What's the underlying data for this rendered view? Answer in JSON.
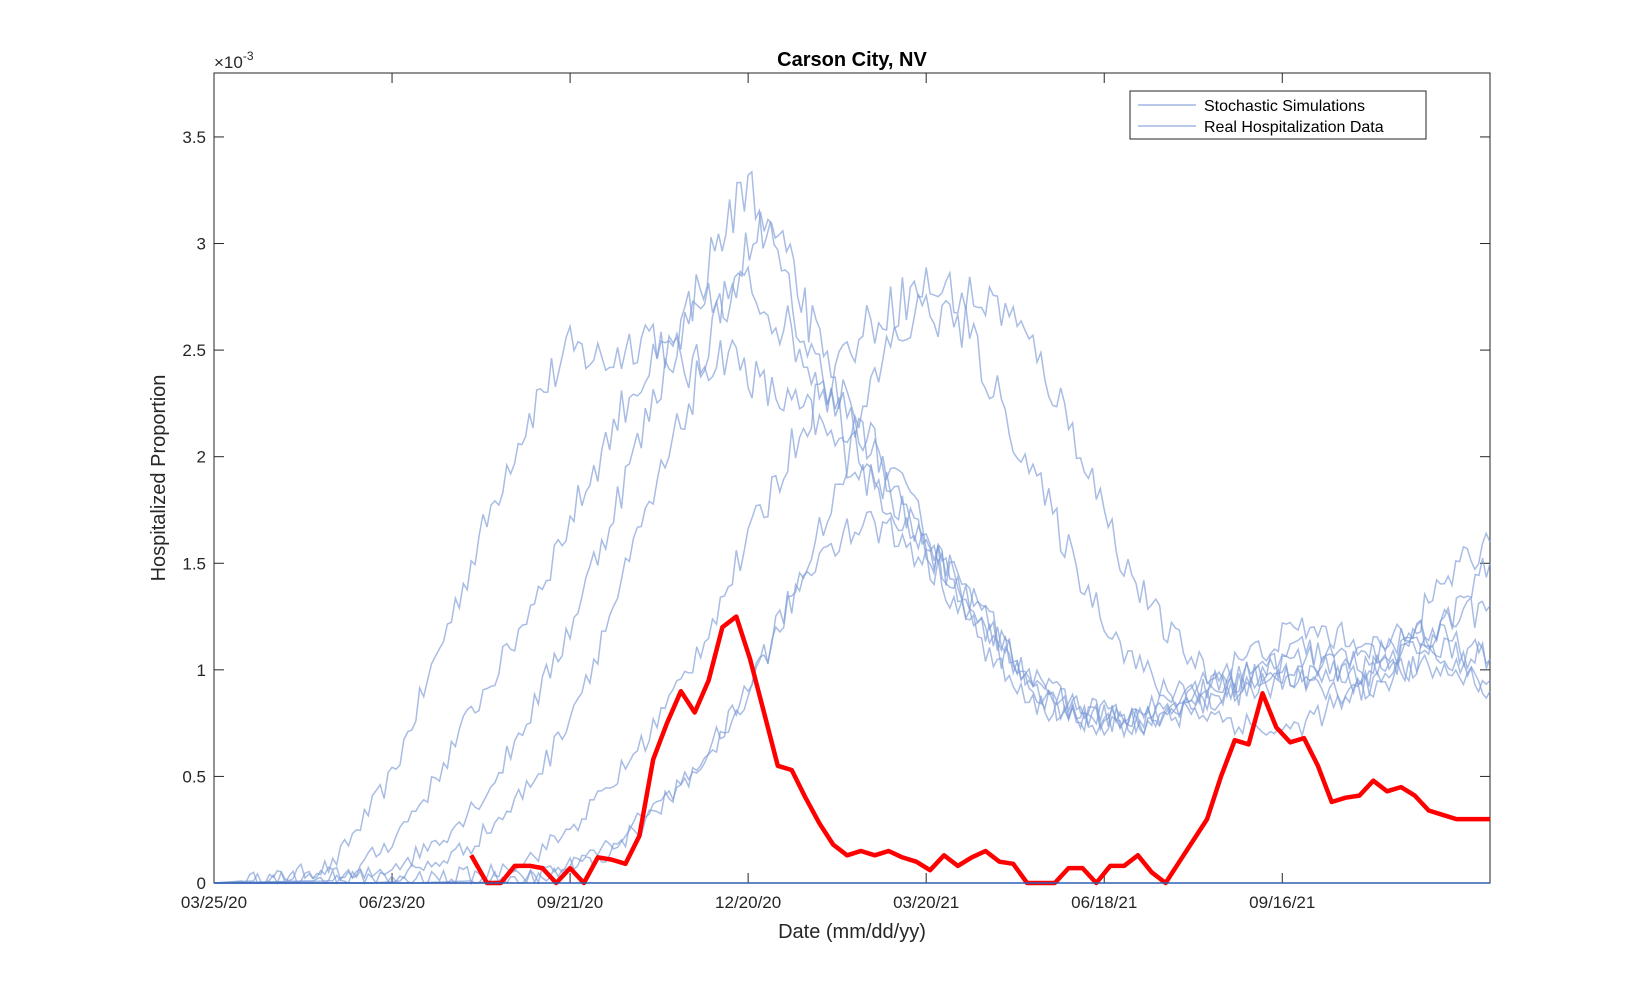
{
  "chart_data": {
    "type": "line",
    "title": "Carson City, NV",
    "xlabel": "Date (mm/dd/yy)",
    "ylabel": "Hospitalized Proportion",
    "y_exponent_label": "×10",
    "y_exponent": "-3",
    "xlim": [
      0,
      645
    ],
    "ylim": [
      0,
      3.8
    ],
    "x_ticks": [
      {
        "day": 0,
        "label": "03/25/20"
      },
      {
        "day": 90,
        "label": "06/23/20"
      },
      {
        "day": 180,
        "label": "09/21/20"
      },
      {
        "day": 270,
        "label": "12/20/20"
      },
      {
        "day": 360,
        "label": "03/20/21"
      },
      {
        "day": 450,
        "label": "06/18/21"
      },
      {
        "day": 540,
        "label": "09/16/21"
      }
    ],
    "y_ticks": [
      {
        "value": 0,
        "label": "0"
      },
      {
        "value": 0.5,
        "label": "0.5"
      },
      {
        "value": 1,
        "label": "1"
      },
      {
        "value": 1.5,
        "label": "1.5"
      },
      {
        "value": 2,
        "label": "2"
      },
      {
        "value": 2.5,
        "label": "2.5"
      },
      {
        "value": 3,
        "label": "3"
      },
      {
        "value": 3.5,
        "label": "3.5"
      }
    ],
    "legend": {
      "position": "top-right",
      "entries": [
        "Stochastic Simulations",
        "Real Hospitalization Data"
      ]
    },
    "colors": {
      "simulations": "#7b9ad6",
      "real": "#ff0000",
      "axis": "#262626"
    },
    "simulations": [
      {
        "x": [
          0,
          30,
          60,
          90,
          110,
          130,
          150,
          165,
          180,
          200,
          220,
          240,
          260,
          280,
          300,
          320,
          340,
          360,
          380,
          400,
          420,
          440,
          460,
          480,
          500,
          520,
          540,
          560,
          580,
          600,
          620,
          645
        ],
        "y": [
          0,
          0.02,
          0.08,
          0.5,
          1.0,
          1.5,
          2.0,
          2.3,
          2.5,
          2.45,
          2.6,
          2.4,
          2.5,
          2.3,
          2.2,
          2.0,
          1.8,
          1.55,
          1.4,
          1.1,
          0.85,
          0.8,
          0.75,
          0.8,
          0.85,
          0.9,
          1.0,
          0.95,
          1.0,
          1.1,
          1.2,
          1.3
        ]
      },
      {
        "x": [
          0,
          40,
          70,
          90,
          110,
          130,
          150,
          170,
          190,
          210,
          230,
          250,
          270,
          290,
          310,
          330,
          350,
          370,
          390,
          410,
          430,
          450,
          470,
          490,
          510,
          530,
          550,
          570,
          590,
          610,
          630,
          645
        ],
        "y": [
          0,
          0.02,
          0.05,
          0.2,
          0.45,
          0.8,
          1.1,
          1.5,
          1.9,
          2.3,
          2.5,
          2.7,
          2.8,
          2.6,
          2.3,
          2.0,
          1.7,
          1.45,
          1.2,
          1.0,
          0.85,
          0.8,
          0.75,
          0.85,
          0.95,
          1.0,
          1.05,
          1.0,
          1.1,
          1.2,
          1.1,
          1.05
        ]
      },
      {
        "x": [
          0,
          50,
          80,
          100,
          120,
          140,
          160,
          180,
          200,
          220,
          240,
          255,
          270,
          285,
          300,
          320,
          340,
          360,
          380,
          400,
          420,
          440,
          460,
          480,
          500,
          520,
          540,
          560,
          580,
          600,
          620,
          645
        ],
        "y": [
          0,
          0.01,
          0.04,
          0.12,
          0.25,
          0.45,
          0.8,
          1.2,
          1.7,
          2.2,
          2.7,
          3.0,
          3.3,
          2.9,
          2.5,
          2.2,
          1.9,
          1.6,
          1.3,
          1.05,
          0.85,
          0.75,
          0.75,
          0.8,
          0.9,
          0.95,
          1.0,
          0.9,
          0.9,
          1.0,
          1.0,
          0.95
        ]
      },
      {
        "x": [
          0,
          60,
          90,
          110,
          130,
          150,
          170,
          190,
          210,
          230,
          250,
          265,
          280,
          295,
          310,
          330,
          350,
          370,
          390,
          410,
          430,
          450,
          470,
          490,
          510,
          530,
          550,
          570,
          590,
          610,
          630,
          645
        ],
        "y": [
          0,
          0.01,
          0.03,
          0.08,
          0.18,
          0.35,
          0.6,
          1.0,
          1.5,
          2.0,
          2.5,
          2.9,
          3.1,
          2.8,
          2.4,
          2.1,
          1.8,
          1.5,
          1.25,
          1.0,
          0.85,
          0.8,
          0.75,
          0.8,
          0.9,
          1.0,
          1.1,
          1.05,
          1.0,
          1.1,
          1.3,
          1.5
        ]
      },
      {
        "x": [
          0,
          80,
          110,
          140,
          160,
          180,
          200,
          220,
          240,
          260,
          280,
          300,
          320,
          340,
          360,
          380,
          400,
          420,
          440,
          460,
          480,
          500,
          520,
          540,
          560,
          580,
          600,
          620,
          645
        ],
        "y": [
          0,
          0.0,
          0.02,
          0.05,
          0.12,
          0.25,
          0.45,
          0.7,
          1.0,
          1.4,
          1.8,
          2.2,
          2.5,
          2.7,
          2.8,
          2.75,
          2.7,
          2.4,
          2.0,
          1.5,
          1.2,
          1.0,
          0.9,
          0.95,
          1.0,
          0.95,
          1.1,
          1.4,
          1.6
        ]
      },
      {
        "x": [
          0,
          100,
          130,
          160,
          180,
          200,
          220,
          240,
          260,
          280,
          300,
          320,
          340,
          360,
          380,
          400,
          420,
          440,
          460,
          480,
          500,
          520,
          540,
          560,
          580,
          600,
          620,
          645
        ],
        "y": [
          0,
          0.0,
          0.01,
          0.03,
          0.08,
          0.15,
          0.3,
          0.5,
          0.75,
          1.1,
          1.5,
          2.0,
          2.5,
          2.7,
          2.6,
          2.2,
          1.8,
          1.4,
          1.1,
          0.9,
          0.8,
          0.75,
          0.7,
          0.8,
          0.9,
          1.0,
          1.1,
          1.05
        ]
      },
      {
        "x": [
          0,
          130,
          160,
          190,
          210,
          230,
          250,
          270,
          290,
          310,
          330,
          350,
          370,
          390,
          410,
          430,
          450,
          470,
          490,
          510,
          530,
          550,
          570,
          590,
          610,
          630,
          645
        ],
        "y": [
          0,
          0.0,
          0.02,
          0.1,
          0.25,
          0.4,
          0.55,
          0.9,
          1.3,
          1.6,
          1.7,
          1.6,
          1.4,
          1.1,
          0.85,
          0.8,
          0.75,
          0.8,
          0.9,
          1.0,
          1.1,
          1.2,
          1.15,
          1.1,
          1.2,
          1.0,
          0.9
        ]
      }
    ],
    "real_data": {
      "x": [
        130,
        138,
        145,
        152,
        160,
        166,
        173,
        180,
        187,
        194,
        201,
        208,
        215,
        222,
        229,
        236,
        243,
        250,
        257,
        264,
        271,
        278,
        285,
        292,
        299,
        306,
        313,
        320,
        327,
        334,
        341,
        348,
        355,
        362,
        369,
        376,
        383,
        390,
        397,
        404,
        411,
        418,
        425,
        432,
        439,
        446,
        453,
        460,
        467,
        474,
        481,
        488,
        495,
        502,
        509,
        516,
        523,
        530,
        537,
        544,
        551,
        558,
        565,
        572,
        579,
        586,
        593,
        600,
        607,
        614,
        621,
        628,
        635,
        645
      ],
      "y": [
        0.13,
        0.0,
        0.0,
        0.08,
        0.08,
        0.07,
        0.0,
        0.07,
        0.0,
        0.12,
        0.11,
        0.09,
        0.22,
        0.58,
        0.75,
        0.9,
        0.8,
        0.95,
        1.2,
        1.25,
        1.05,
        0.8,
        0.55,
        0.53,
        0.4,
        0.28,
        0.18,
        0.13,
        0.15,
        0.13,
        0.15,
        0.12,
        0.1,
        0.06,
        0.13,
        0.08,
        0.12,
        0.15,
        0.1,
        0.09,
        0.0,
        0.0,
        0.0,
        0.07,
        0.07,
        0.0,
        0.08,
        0.08,
        0.13,
        0.05,
        0.0,
        0.1,
        0.2,
        0.3,
        0.5,
        0.67,
        0.65,
        0.89,
        0.73,
        0.66,
        0.68,
        0.55,
        0.38,
        0.4,
        0.41,
        0.48,
        0.43,
        0.45,
        0.41,
        0.34,
        0.32,
        0.3,
        0.3,
        0.3
      ]
    }
  }
}
